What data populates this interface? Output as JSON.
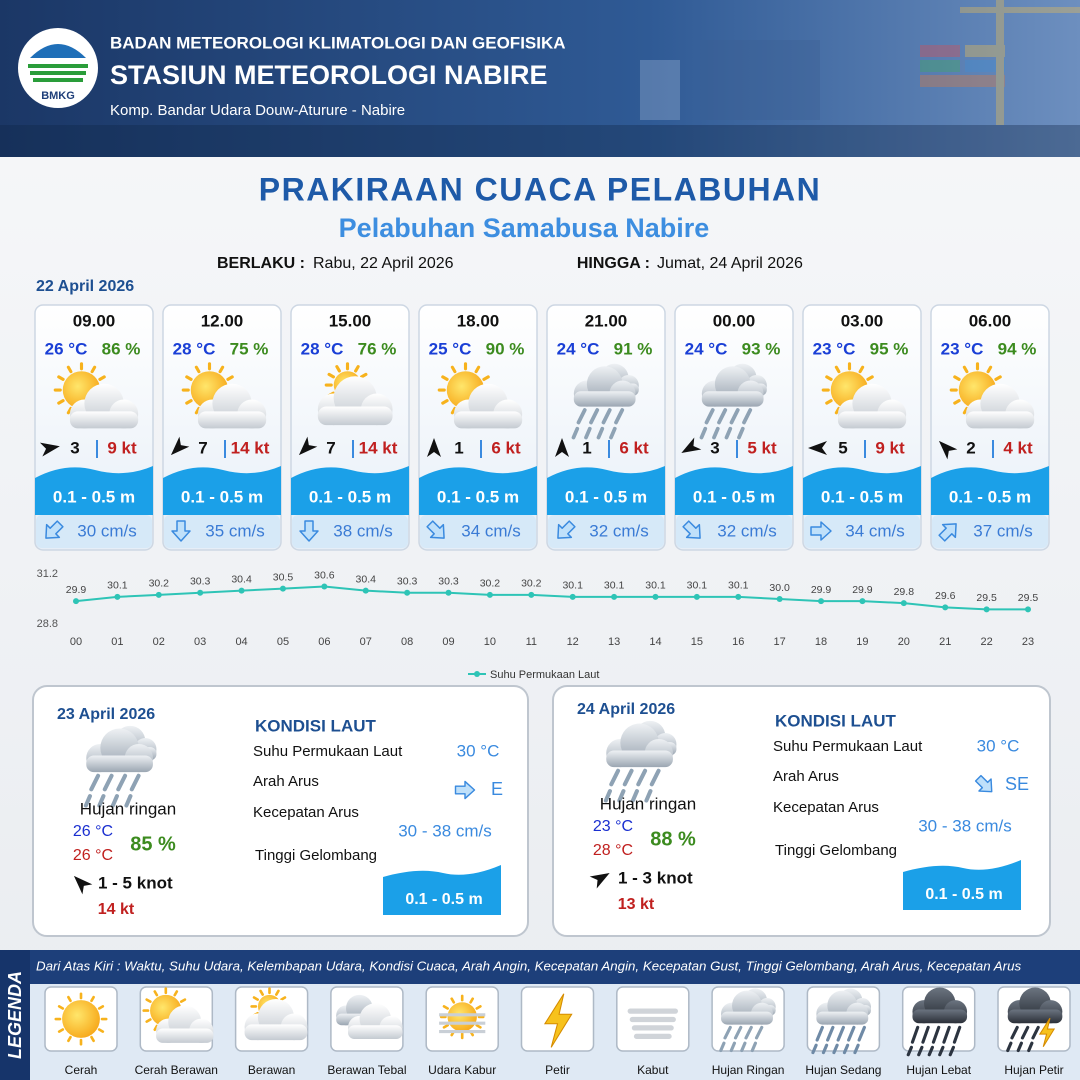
{
  "header": {
    "logo": "BMKG",
    "agency": "BADAN METEOROLOGI KLIMATOLOGI DAN GEOFISIKA",
    "station": "STASIUN METEOROLOGI NABIRE",
    "address": "Komp. Bandar Udara Douw-Aturure - Nabire"
  },
  "title": "PRAKIRAAN CUACA PELABUHAN",
  "subtitle": "Pelabuhan Samabusa Nabire",
  "validity": {
    "from_label": "BERLAKU :",
    "from": "Rabu, 22 April 2026",
    "to_label": "HINGGA :",
    "to": "Jumat, 24 April 2026"
  },
  "today": {
    "date": "22 April 2026",
    "slots": [
      {
        "time": "09.00",
        "temp": "26 °C",
        "humidity": "86 %",
        "icon": 1,
        "wind_dir": 80,
        "wind": "3",
        "gust": "9 kt",
        "wave": "0.1 - 0.5 m",
        "current_dir": 225,
        "current": "30 cm/s"
      },
      {
        "time": "12.00",
        "temp": "28 °C",
        "humidity": "75 %",
        "icon": 1,
        "wind_dir": 225,
        "wind": "7",
        "gust": "14 kt",
        "wave": "0.1 - 0.5 m",
        "current_dir": 180,
        "current": "35 cm/s"
      },
      {
        "time": "15.00",
        "temp": "28 °C",
        "humidity": "76 %",
        "icon": 2,
        "wind_dir": 225,
        "wind": "7",
        "gust": "14 kt",
        "wave": "0.1 - 0.5 m",
        "current_dir": 180,
        "current": "38 cm/s"
      },
      {
        "time": "18.00",
        "temp": "25 °C",
        "humidity": "90 %",
        "icon": 1,
        "wind_dir": 0,
        "wind": "1",
        "gust": "6 kt",
        "wave": "0.1 - 0.5 m",
        "current_dir": 135,
        "current": "34 cm/s"
      },
      {
        "time": "21.00",
        "temp": "24 °C",
        "humidity": "91 %",
        "icon": 7,
        "wind_dir": 0,
        "wind": "1",
        "gust": "6 kt",
        "wave": "0.1 - 0.5 m",
        "current_dir": 225,
        "current": "32 cm/s"
      },
      {
        "time": "00.00",
        "temp": "24 °C",
        "humidity": "93 %",
        "icon": 7,
        "wind_dir": 240,
        "wind": "3",
        "gust": "5 kt",
        "wave": "0.1 - 0.5 m",
        "current_dir": 135,
        "current": "32 cm/s"
      },
      {
        "time": "03.00",
        "temp": "23 °C",
        "humidity": "95 %",
        "icon": 1,
        "wind_dir": 270,
        "wind": "5",
        "gust": "9 kt",
        "wave": "0.1 - 0.5 m",
        "current_dir": 90,
        "current": "34 cm/s"
      },
      {
        "time": "06.00",
        "temp": "23 °C",
        "humidity": "94 %",
        "icon": 1,
        "wind_dir": 315,
        "wind": "2",
        "gust": "4 kt",
        "wave": "0.1 - 0.5 m",
        "current_dir": 45,
        "current": "37 cm/s"
      }
    ]
  },
  "chart_data": {
    "type": "line",
    "categories": [
      "00",
      "01",
      "02",
      "03",
      "04",
      "05",
      "06",
      "07",
      "08",
      "09",
      "10",
      "11",
      "12",
      "13",
      "14",
      "15",
      "16",
      "17",
      "18",
      "19",
      "20",
      "21",
      "22",
      "23"
    ],
    "series": [
      {
        "name": "Suhu Permukaan Laut",
        "color": "#2ec4b6",
        "values": [
          29.9,
          30.1,
          30.2,
          30.3,
          30.4,
          30.5,
          30.6,
          30.4,
          30.3,
          30.3,
          30.2,
          30.2,
          30.1,
          30.1,
          30.1,
          30.1,
          30.1,
          30.0,
          29.9,
          29.9,
          29.8,
          29.6,
          29.5,
          29.5
        ],
        "value_labels": [
          "29.9",
          "30.1",
          "30.2",
          "30.3",
          "30.4",
          "30.5",
          "30.6",
          "30.4",
          "30.3",
          "30.3",
          "30.2",
          "30.2",
          "30.1",
          "30.1",
          "30.1",
          "30.1",
          "30.1",
          "30.0",
          "29.9",
          "29.9",
          "29.8",
          "29.6",
          "29.5",
          "29.5"
        ]
      }
    ],
    "ylim": [
      28.8,
      31.2
    ],
    "yticks": [
      28.8,
      31.2
    ]
  },
  "outlook": [
    {
      "date": "23 April 2026",
      "icon": 7,
      "weather": "Hujan ringan",
      "temp_min": "26 °C",
      "temp_max": "26 °C",
      "humidity": "85 %",
      "wind_dir": 315,
      "wind": "1 - 5 knot",
      "gust": "14 kt",
      "sea_title": "KONDISI LAUT",
      "sst_label": "Suhu Permukaan Laut",
      "sst": "30 °C",
      "current_dir_label": "Arah Arus",
      "current_dir_deg": 90,
      "current_dir": "E",
      "current_speed_label": "Kecepatan Arus",
      "current_speed": "30 - 38 cm/s",
      "wave_label": "Tinggi Gelombang",
      "wave": "0.1 - 0.5 m"
    },
    {
      "date": "24 April 2026",
      "icon": 7,
      "weather": "Hujan ringan",
      "temp_min": "23 °C",
      "temp_max": "28 °C",
      "humidity": "88 %",
      "wind_dir": 60,
      "wind": "1 - 3 knot",
      "gust": "13 kt",
      "sea_title": "KONDISI LAUT",
      "sst_label": "Suhu Permukaan Laut",
      "sst": "30 °C",
      "current_dir_label": "Arah Arus",
      "current_dir_deg": 135,
      "current_dir": "SE",
      "current_speed_label": "Kecepatan Arus",
      "current_speed": "30 - 38 cm/s",
      "wave_label": "Tinggi Gelombang",
      "wave": "0.1 - 0.5 m"
    }
  ],
  "legend": {
    "title": "LEGENDA",
    "description": "Dari Atas Kiri : Waktu, Suhu Udara, Kelembapan Udara, Kondisi Cuaca, Arah Angin, Kecepatan Angin, Kecepatan Gust, Tinggi Gelombang, Arah Arus, Kecepatan Arus",
    "items": [
      "Cerah",
      "Cerah Berawan",
      "Berawan",
      "Berawan Tebal",
      "Udara Kabur",
      "Petir",
      "Kabut",
      "Hujan Ringan",
      "Hujan Sedang",
      "Hujan Lebat",
      "Hujan Petir"
    ]
  }
}
